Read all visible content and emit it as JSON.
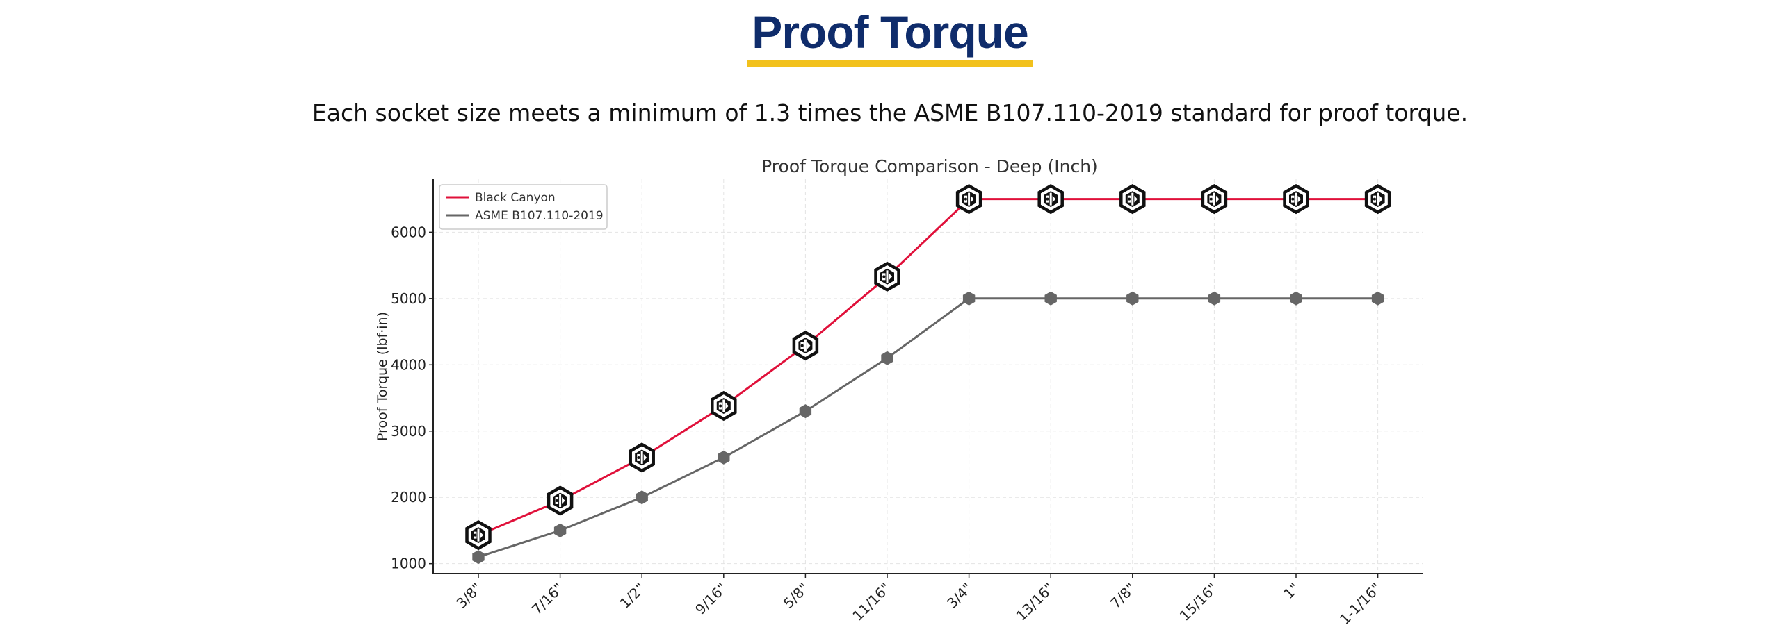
{
  "page": {
    "title": "Proof Torque",
    "subtitle": "Each socket size meets a minimum of 1.3 times the ASME B107.110-2019 standard for proof torque."
  },
  "colors": {
    "title": "#0f2c6b",
    "accent": "#f2c11c",
    "black_canyon": "#e0103a",
    "asme": "#666666"
  },
  "chart_data": {
    "type": "line",
    "title": "Proof Torque Comparison - Deep (Inch)",
    "xlabel": "",
    "ylabel": "Proof Torque (lbf·in)",
    "categories": [
      "3/8\"",
      "7/16\"",
      "1/2\"",
      "9/16\"",
      "5/8\"",
      "11/16\"",
      "3/4\"",
      "13/16\"",
      "7/8\"",
      "15/16\"",
      "1\"",
      "1-1/16\""
    ],
    "ylim": [
      850,
      6800
    ],
    "yticks": [
      1000,
      2000,
      3000,
      4000,
      5000,
      6000
    ],
    "grid": true,
    "legend_position": "top-left",
    "series": [
      {
        "name": "Black Canyon",
        "color": "#e0103a",
        "marker": "brand-hexagon-icon",
        "values": [
          1430,
          1950,
          2600,
          3380,
          4290,
          5330,
          6500,
          6500,
          6500,
          6500,
          6500,
          6500
        ]
      },
      {
        "name": "ASME B107.110-2019",
        "color": "#666666",
        "marker": "hexagon",
        "values": [
          1100,
          1500,
          2000,
          2600,
          3300,
          4100,
          5000,
          5000,
          5000,
          5000,
          5000,
          5000
        ]
      }
    ]
  }
}
